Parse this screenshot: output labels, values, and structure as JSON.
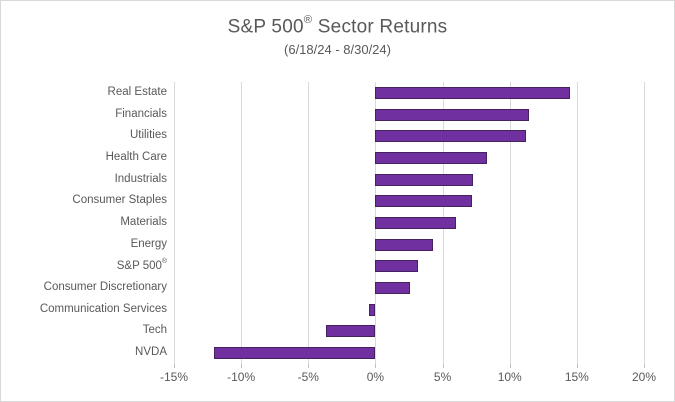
{
  "chart": {
    "title": "S&P 500® Sector Returns",
    "subtitle": "(6/18/24 - 8/30/24)"
  },
  "chart_data": {
    "type": "bar",
    "orientation": "horizontal",
    "title": "S&P 500® Sector Returns",
    "subtitle": "(6/18/24 - 8/30/24)",
    "categories": [
      "Real Estate",
      "Financials",
      "Utilities",
      "Health Care",
      "Industrials",
      "Consumer Staples",
      "Materials",
      "Energy",
      "S&P 500®",
      "Consumer Discretionary",
      "Communication Services",
      "Tech",
      "NVDA"
    ],
    "values": [
      14.5,
      11.4,
      11.2,
      8.3,
      7.3,
      7.2,
      6.0,
      4.3,
      3.2,
      2.6,
      -0.5,
      -3.7,
      -12.0
    ],
    "value_unit": "%",
    "xlabel": "",
    "ylabel": "",
    "xlim": [
      -15,
      20
    ],
    "x_ticks": [
      -15,
      -10,
      -5,
      0,
      5,
      10,
      15,
      20
    ],
    "x_tick_labels": [
      "-15%",
      "-10%",
      "-5%",
      "0%",
      "5%",
      "10%",
      "15%",
      "20%"
    ],
    "grid": true,
    "legend": false,
    "colors": {
      "bar_fill": "#7030A0",
      "bar_border": "#45215E",
      "gridline": "#D9D9D9",
      "tick": "#BFBFBF",
      "text": "#595959",
      "background": "#FFFFFF",
      "frame_border": "#D9D9D9"
    }
  }
}
